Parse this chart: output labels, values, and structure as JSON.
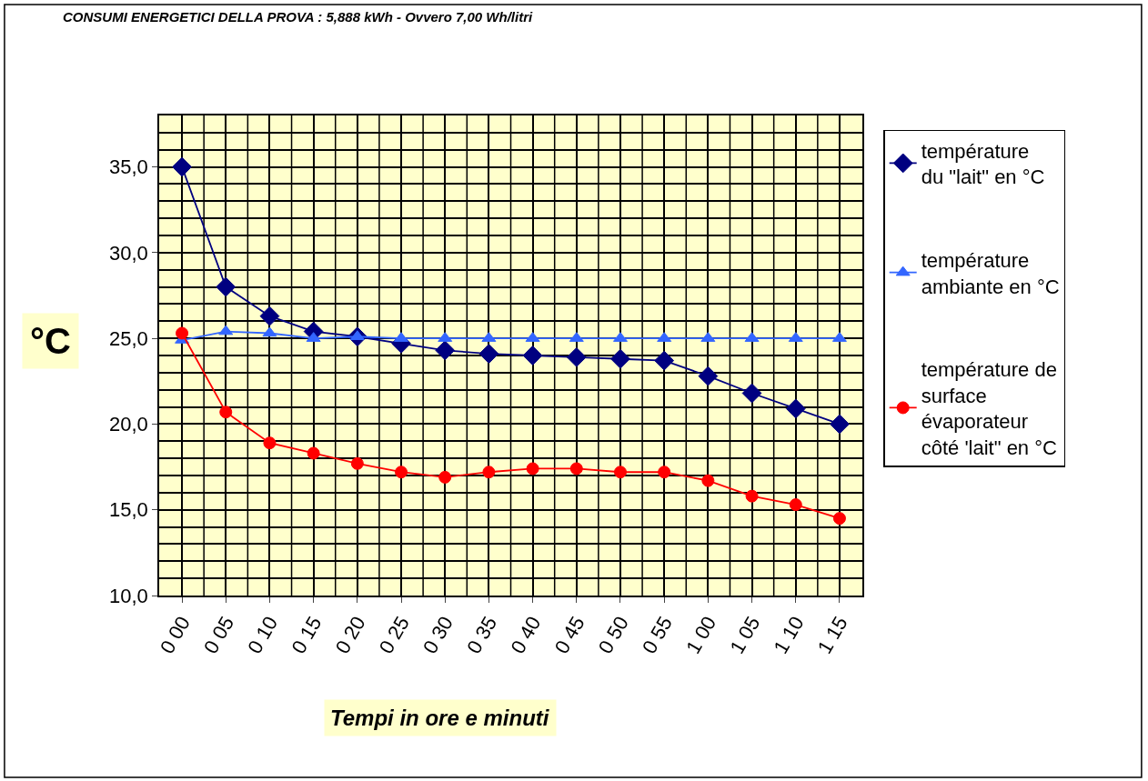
{
  "chart_data": {
    "type": "line",
    "title": "CONSUMI ENERGETICI DELLA PROVA : 5,888 kWh - Ovvero 7,00 Wh/litri",
    "xlabel": "Tempi in ore e minuti",
    "ylabel": "°C",
    "categories": [
      "0 00",
      "0 05",
      "0 10",
      "0 15",
      "0 20",
      "0 25",
      "0 30",
      "0 35",
      "0 40",
      "0 45",
      "0 50",
      "0 55",
      "1 00",
      "1 05",
      "1 10",
      "1 15"
    ],
    "series": [
      {
        "name": "température\ndu \"lait\" en °C",
        "color": "#000080",
        "marker": "diamond",
        "values": [
          35.0,
          28.0,
          26.3,
          25.4,
          25.1,
          24.7,
          24.3,
          24.1,
          24.0,
          23.9,
          23.8,
          23.7,
          22.8,
          21.8,
          20.9,
          20.0
        ]
      },
      {
        "name": "température\nambiante en °C",
        "color": "#3366ff",
        "marker": "triangle",
        "values": [
          24.9,
          25.4,
          25.3,
          25.0,
          25.1,
          25.0,
          25.0,
          25.0,
          25.0,
          25.0,
          25.0,
          25.0,
          25.0,
          25.0,
          25.0,
          25.0
        ]
      },
      {
        "name": "température de\nsurface\névaporateur\ncôté 'lait\" en °C",
        "color": "#ff0000",
        "marker": "circle",
        "values": [
          25.3,
          20.7,
          18.9,
          18.3,
          17.7,
          17.2,
          16.9,
          17.2,
          17.4,
          17.4,
          17.2,
          17.2,
          16.7,
          15.8,
          15.3,
          14.5
        ]
      }
    ],
    "ylim": [
      10,
      38
    ],
    "yticks": [
      {
        "value": 10,
        "label": "10,0"
      },
      {
        "value": 15,
        "label": "15,0"
      },
      {
        "value": 20,
        "label": "20,0"
      },
      {
        "value": 25,
        "label": "25,0"
      },
      {
        "value": 30,
        "label": "30,0"
      },
      {
        "value": 35,
        "label": "35,0"
      }
    ],
    "grid": true,
    "legend": "right",
    "line_style": "solid"
  }
}
